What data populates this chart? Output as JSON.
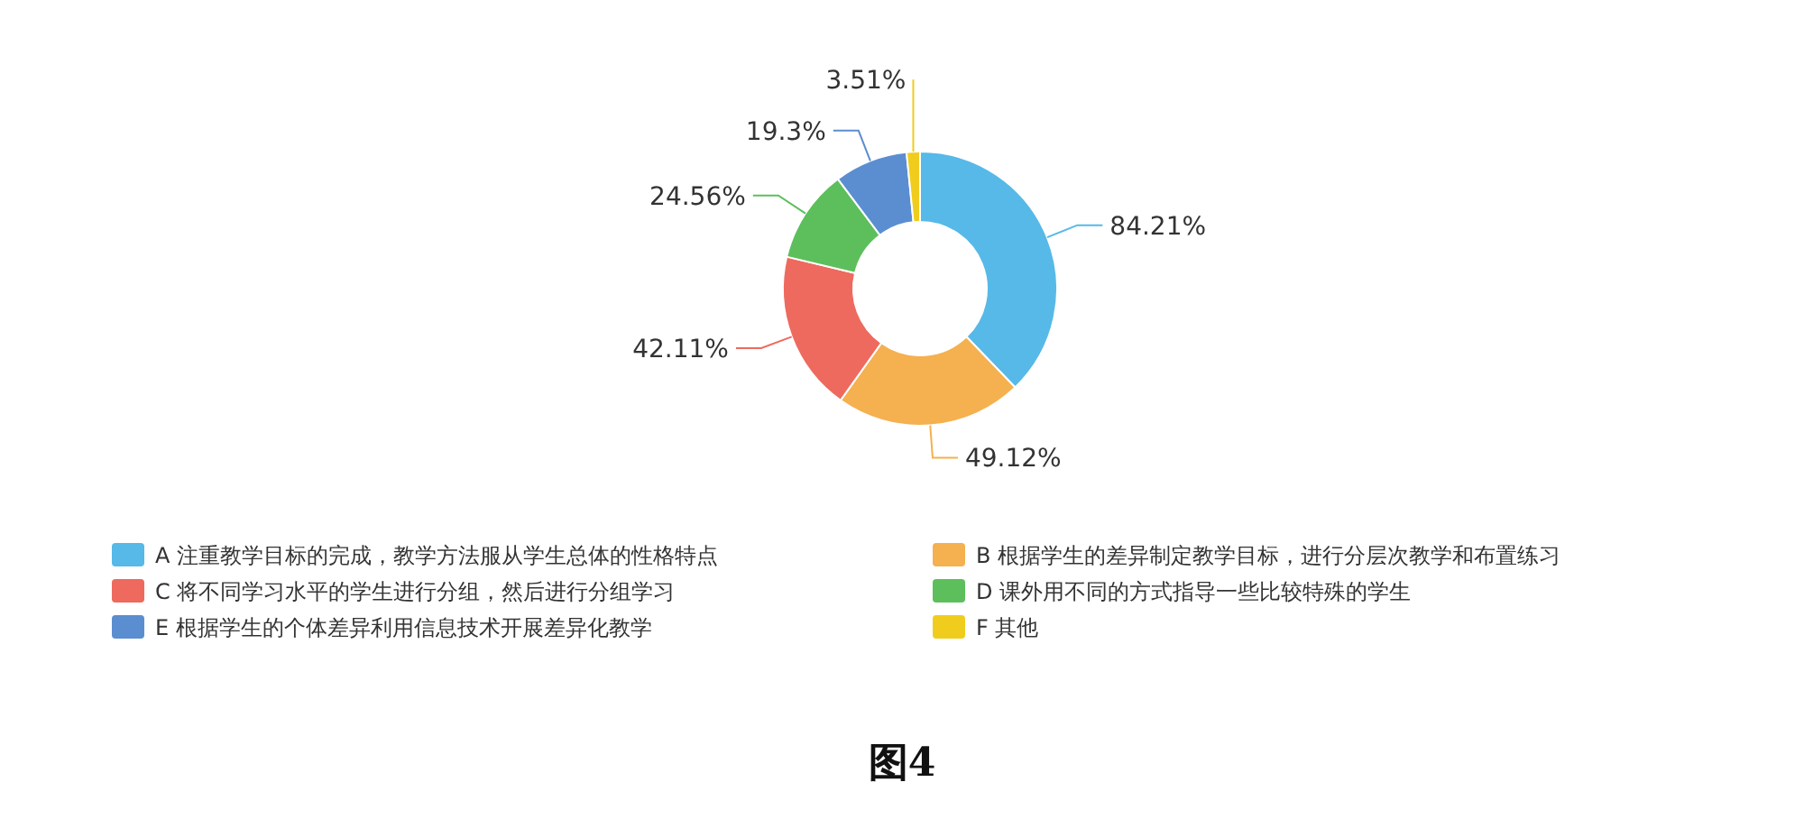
{
  "chart_data": {
    "type": "donut",
    "categories": [
      "A 注重教学目标的完成，教学方法服从学生总体的性格特点",
      "B 根据学生的差异制定教学目标，进行分层次教学和布置练习",
      "C 将不同学习水平的学生进行分组，然后进行分组学习",
      "D 课外用不同的方式指导一些比较特殊的学生",
      "E 根据学生的个体差异利用信息技术开展差异化教学",
      "F 其他"
    ],
    "values": [
      84.21,
      49.12,
      42.11,
      24.56,
      19.3,
      3.51
    ],
    "value_labels": [
      "84.21%",
      "49.12%",
      "42.11%",
      "24.56%",
      "19.3%",
      "3.51%"
    ],
    "colors": [
      "#56b9e8",
      "#f5b04f",
      "#ee6a5e",
      "#5cbf5c",
      "#5b8ed0",
      "#f0cd1c"
    ],
    "legend": "bottom",
    "annotations": [
      "图4"
    ]
  }
}
